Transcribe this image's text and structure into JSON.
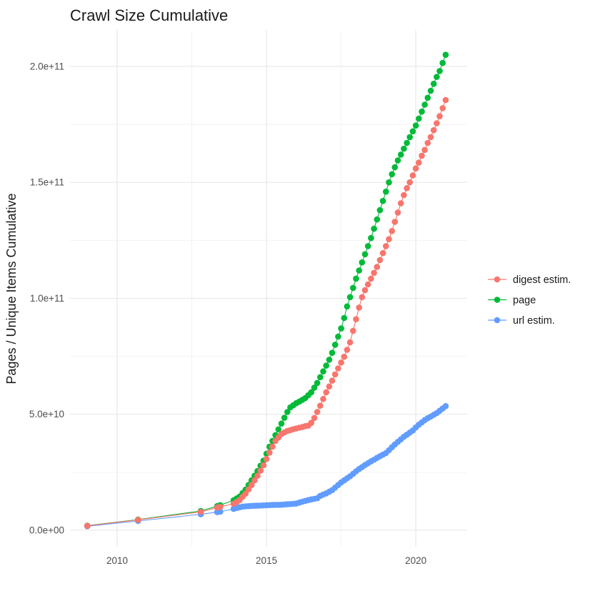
{
  "chart_data": {
    "type": "line-scatter",
    "title": "Crawl Size Cumulative",
    "xlabel": "",
    "ylabel": "Pages / Unique Items Cumulative",
    "value_unit": "pages (values stored in billions, 1e9)",
    "grid": true,
    "legend_position": "right",
    "x_range": [
      2008.42,
      2021.72
    ],
    "y_range_billions": [
      -7.1,
      215.7
    ],
    "x_ticks": [
      {
        "value": 2010,
        "label": "2010"
      },
      {
        "value": 2015,
        "label": "2015"
      },
      {
        "value": 2020,
        "label": "2020"
      }
    ],
    "x_minor_ticks": [
      2012.5,
      2017.5
    ],
    "y_ticks": [
      {
        "value_billions": 0,
        "label": "0.0e+00"
      },
      {
        "value_billions": 50,
        "label": "5.0e+10"
      },
      {
        "value_billions": 100,
        "label": "1.0e+11"
      },
      {
        "value_billions": 150,
        "label": "1.5e+11"
      },
      {
        "value_billions": 200,
        "label": "2.0e+11"
      }
    ],
    "y_minor_ticks_billions": [
      25,
      75,
      125,
      175
    ],
    "colors": {
      "digest": "#F8766D",
      "page": "#00BA38",
      "url": "#619CFF"
    },
    "draw_order": [
      1,
      2,
      0
    ],
    "series": [
      {
        "name": "digest estim.",
        "color": "#F8766D",
        "points_year_billions": [
          [
            2009,
            1.9
          ],
          [
            2010.7,
            4.5
          ],
          [
            2012.8,
            7.9
          ],
          [
            2013.35,
            9.8
          ],
          [
            2013.45,
            10.1
          ],
          [
            2013.9,
            11.4
          ],
          [
            2014,
            12.2
          ],
          [
            2014.1,
            13
          ],
          [
            2014.2,
            14.4
          ],
          [
            2014.3,
            15.8
          ],
          [
            2014.4,
            17.6
          ],
          [
            2014.5,
            19.5
          ],
          [
            2014.6,
            21.5
          ],
          [
            2014.7,
            23.5
          ],
          [
            2014.8,
            25.7
          ],
          [
            2014.9,
            28
          ],
          [
            2015,
            30.7
          ],
          [
            2015.1,
            33.5
          ],
          [
            2015.2,
            36
          ],
          [
            2015.3,
            38.5
          ],
          [
            2015.4,
            40
          ],
          [
            2015.5,
            41.5
          ],
          [
            2015.6,
            42.2
          ],
          [
            2015.7,
            42.8
          ],
          [
            2015.8,
            43.2
          ],
          [
            2015.9,
            43.6
          ],
          [
            2016,
            43.9
          ],
          [
            2016.1,
            44.2
          ],
          [
            2016.2,
            44.5
          ],
          [
            2016.3,
            44.9
          ],
          [
            2016.4,
            45.1
          ],
          [
            2016.5,
            46.3
          ],
          [
            2016.6,
            48.4
          ],
          [
            2016.7,
            51
          ],
          [
            2016.8,
            53.7
          ],
          [
            2016.9,
            56.6
          ],
          [
            2017,
            59.5
          ],
          [
            2017.1,
            62
          ],
          [
            2017.2,
            64.5
          ],
          [
            2017.3,
            67.2
          ],
          [
            2017.4,
            69.8
          ],
          [
            2017.5,
            72.3
          ],
          [
            2017.6,
            74.8
          ],
          [
            2017.7,
            77.8
          ],
          [
            2017.8,
            81
          ],
          [
            2017.9,
            86
          ],
          [
            2018,
            91
          ],
          [
            2018.1,
            96
          ],
          [
            2018.2,
            100.5
          ],
          [
            2018.3,
            103.5
          ],
          [
            2018.4,
            106
          ],
          [
            2018.5,
            108.5
          ],
          [
            2018.6,
            111
          ],
          [
            2018.7,
            113.5
          ],
          [
            2018.8,
            116.5
          ],
          [
            2018.9,
            119.5
          ],
          [
            2019,
            122.5
          ],
          [
            2019.1,
            125.5
          ],
          [
            2019.2,
            129
          ],
          [
            2019.3,
            133
          ],
          [
            2019.4,
            137
          ],
          [
            2019.5,
            141
          ],
          [
            2019.6,
            144.5
          ],
          [
            2019.7,
            147.5
          ],
          [
            2019.8,
            150
          ],
          [
            2019.9,
            153
          ],
          [
            2020,
            156
          ],
          [
            2020.1,
            158.5
          ],
          [
            2020.2,
            161.5
          ],
          [
            2020.3,
            164
          ],
          [
            2020.4,
            167
          ],
          [
            2020.5,
            169.5
          ],
          [
            2020.6,
            172.5
          ],
          [
            2020.7,
            175.5
          ],
          [
            2020.8,
            178.5
          ],
          [
            2020.9,
            182
          ],
          [
            2021,
            185.5
          ]
        ]
      },
      {
        "name": "page",
        "color": "#00BA38",
        "points_year_billions": [
          [
            2009,
            2
          ],
          [
            2010.7,
            4.6
          ],
          [
            2012.8,
            8.3
          ],
          [
            2013.35,
            10.4
          ],
          [
            2013.45,
            10.8
          ],
          [
            2013.9,
            12.9
          ],
          [
            2014,
            13.7
          ],
          [
            2014.1,
            14.5
          ],
          [
            2014.2,
            16
          ],
          [
            2014.3,
            17.5
          ],
          [
            2014.4,
            19.5
          ],
          [
            2014.5,
            21.5
          ],
          [
            2014.6,
            23.5
          ],
          [
            2014.7,
            25.5
          ],
          [
            2014.8,
            27.8
          ],
          [
            2014.9,
            30
          ],
          [
            2015,
            33
          ],
          [
            2015.1,
            36
          ],
          [
            2015.2,
            38.5
          ],
          [
            2015.3,
            41
          ],
          [
            2015.4,
            43.5
          ],
          [
            2015.5,
            46
          ],
          [
            2015.6,
            48.5
          ],
          [
            2015.7,
            51
          ],
          [
            2015.8,
            53
          ],
          [
            2015.9,
            53.9
          ],
          [
            2016,
            54.8
          ],
          [
            2016.1,
            55.5
          ],
          [
            2016.2,
            56.2
          ],
          [
            2016.3,
            57
          ],
          [
            2016.4,
            58.2
          ],
          [
            2016.5,
            59.5
          ],
          [
            2016.6,
            61.5
          ],
          [
            2016.7,
            63.5
          ],
          [
            2016.8,
            66
          ],
          [
            2016.9,
            68.5
          ],
          [
            2017,
            71
          ],
          [
            2017.1,
            73.5
          ],
          [
            2017.2,
            76.5
          ],
          [
            2017.3,
            80
          ],
          [
            2017.4,
            83.5
          ],
          [
            2017.5,
            87
          ],
          [
            2017.6,
            91.5
          ],
          [
            2017.7,
            96.5
          ],
          [
            2017.8,
            100.5
          ],
          [
            2017.9,
            104.5
          ],
          [
            2018,
            108.5
          ],
          [
            2018.1,
            112
          ],
          [
            2018.2,
            115.5
          ],
          [
            2018.3,
            119
          ],
          [
            2018.4,
            122.5
          ],
          [
            2018.5,
            126
          ],
          [
            2018.6,
            130
          ],
          [
            2018.7,
            134
          ],
          [
            2018.8,
            138
          ],
          [
            2018.9,
            142
          ],
          [
            2019,
            146
          ],
          [
            2019.1,
            150
          ],
          [
            2019.2,
            153.5
          ],
          [
            2019.3,
            156.5
          ],
          [
            2019.4,
            159.5
          ],
          [
            2019.5,
            162
          ],
          [
            2019.6,
            164.5
          ],
          [
            2019.7,
            167
          ],
          [
            2019.8,
            169.5
          ],
          [
            2019.9,
            172
          ],
          [
            2020,
            174.5
          ],
          [
            2020.1,
            177.5
          ],
          [
            2020.2,
            180.5
          ],
          [
            2020.3,
            183.5
          ],
          [
            2020.4,
            186.5
          ],
          [
            2020.5,
            189.5
          ],
          [
            2020.6,
            192.5
          ],
          [
            2020.7,
            195.5
          ],
          [
            2020.8,
            198
          ],
          [
            2020.9,
            201.5
          ],
          [
            2021,
            205
          ]
        ]
      },
      {
        "name": "url estim.",
        "color": "#619CFF",
        "points_year_billions": [
          [
            2009,
            1.7
          ],
          [
            2010.7,
            4
          ],
          [
            2012.8,
            6.9
          ],
          [
            2013.35,
            7.8
          ],
          [
            2013.45,
            8
          ],
          [
            2013.9,
            9.2
          ],
          [
            2014,
            9.6
          ],
          [
            2014.1,
            9.9
          ],
          [
            2014.2,
            10.2
          ],
          [
            2014.3,
            10.3
          ],
          [
            2014.4,
            10.4
          ],
          [
            2014.5,
            10.5
          ],
          [
            2014.6,
            10.55
          ],
          [
            2014.7,
            10.6
          ],
          [
            2014.8,
            10.65
          ],
          [
            2014.9,
            10.7
          ],
          [
            2015,
            10.8
          ],
          [
            2015.1,
            10.85
          ],
          [
            2015.2,
            10.9
          ],
          [
            2015.3,
            10.92
          ],
          [
            2015.4,
            10.96
          ],
          [
            2015.5,
            11
          ],
          [
            2015.6,
            11.1
          ],
          [
            2015.7,
            11.2
          ],
          [
            2015.8,
            11.3
          ],
          [
            2015.9,
            11.4
          ],
          [
            2016,
            11.5
          ],
          [
            2016.1,
            11.9
          ],
          [
            2016.2,
            12.3
          ],
          [
            2016.3,
            12.65
          ],
          [
            2016.4,
            13
          ],
          [
            2016.5,
            13.3
          ],
          [
            2016.6,
            13.55
          ],
          [
            2016.7,
            13.8
          ],
          [
            2016.8,
            14.8
          ],
          [
            2016.9,
            15.35
          ],
          [
            2017,
            15.9
          ],
          [
            2017.1,
            16.6
          ],
          [
            2017.2,
            17.3
          ],
          [
            2017.3,
            18.4
          ],
          [
            2017.4,
            19.5
          ],
          [
            2017.5,
            20.6
          ],
          [
            2017.6,
            21.5
          ],
          [
            2017.7,
            22.4
          ],
          [
            2017.8,
            23.3
          ],
          [
            2017.9,
            24.3
          ],
          [
            2018,
            25.4
          ],
          [
            2018.1,
            26.4
          ],
          [
            2018.2,
            27.2
          ],
          [
            2018.3,
            28.1
          ],
          [
            2018.4,
            28.9
          ],
          [
            2018.5,
            29.7
          ],
          [
            2018.6,
            30.4
          ],
          [
            2018.7,
            31.2
          ],
          [
            2018.8,
            31.9
          ],
          [
            2018.9,
            32.6
          ],
          [
            2019,
            33.3
          ],
          [
            2019.1,
            34.5
          ],
          [
            2019.2,
            35.8
          ],
          [
            2019.3,
            37
          ],
          [
            2019.4,
            38.1
          ],
          [
            2019.5,
            39.2
          ],
          [
            2019.6,
            40.3
          ],
          [
            2019.7,
            41.2
          ],
          [
            2019.8,
            42.1
          ],
          [
            2019.9,
            43
          ],
          [
            2020,
            44.3
          ],
          [
            2020.1,
            45.5
          ],
          [
            2020.2,
            46.5
          ],
          [
            2020.3,
            47.5
          ],
          [
            2020.4,
            48.3
          ],
          [
            2020.5,
            49
          ],
          [
            2020.6,
            49.8
          ],
          [
            2020.7,
            50.5
          ],
          [
            2020.8,
            51.5
          ],
          [
            2020.9,
            52.5
          ],
          [
            2021,
            53.5
          ]
        ]
      }
    ]
  }
}
